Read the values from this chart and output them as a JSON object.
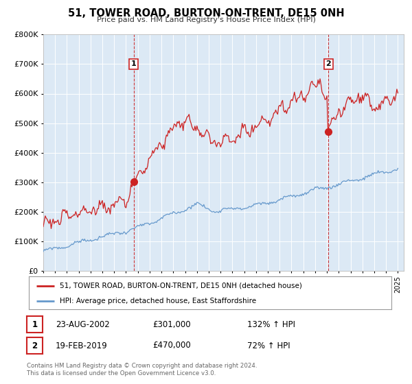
{
  "title": "51, TOWER ROAD, BURTON-ON-TRENT, DE15 0NH",
  "subtitle": "Price paid vs. HM Land Registry's House Price Index (HPI)",
  "ylim": [
    0,
    800000
  ],
  "xlim_start": 1995.0,
  "xlim_end": 2025.5,
  "red_line_color": "#cc2222",
  "blue_line_color": "#6699cc",
  "marker1_x": 2002.644,
  "marker1_y": 301000,
  "marker2_x": 2019.122,
  "marker2_y": 470000,
  "sale1_label": "23-AUG-2002",
  "sale1_price": "£301,000",
  "sale1_hpi": "132% ↑ HPI",
  "sale2_label": "19-FEB-2019",
  "sale2_price": "£470,000",
  "sale2_hpi": "72% ↑ HPI",
  "legend_label_red": "51, TOWER ROAD, BURTON-ON-TRENT, DE15 0NH (detached house)",
  "legend_label_blue": "HPI: Average price, detached house, East Staffordshire",
  "footer_line1": "Contains HM Land Registry data © Crown copyright and database right 2024.",
  "footer_line2": "This data is licensed under the Open Government Licence v3.0.",
  "background_color": "#dce9f5",
  "yticks": [
    0,
    100000,
    200000,
    300000,
    400000,
    500000,
    600000,
    700000,
    800000
  ],
  "xticks_start": 1995,
  "xticks_end": 2026
}
